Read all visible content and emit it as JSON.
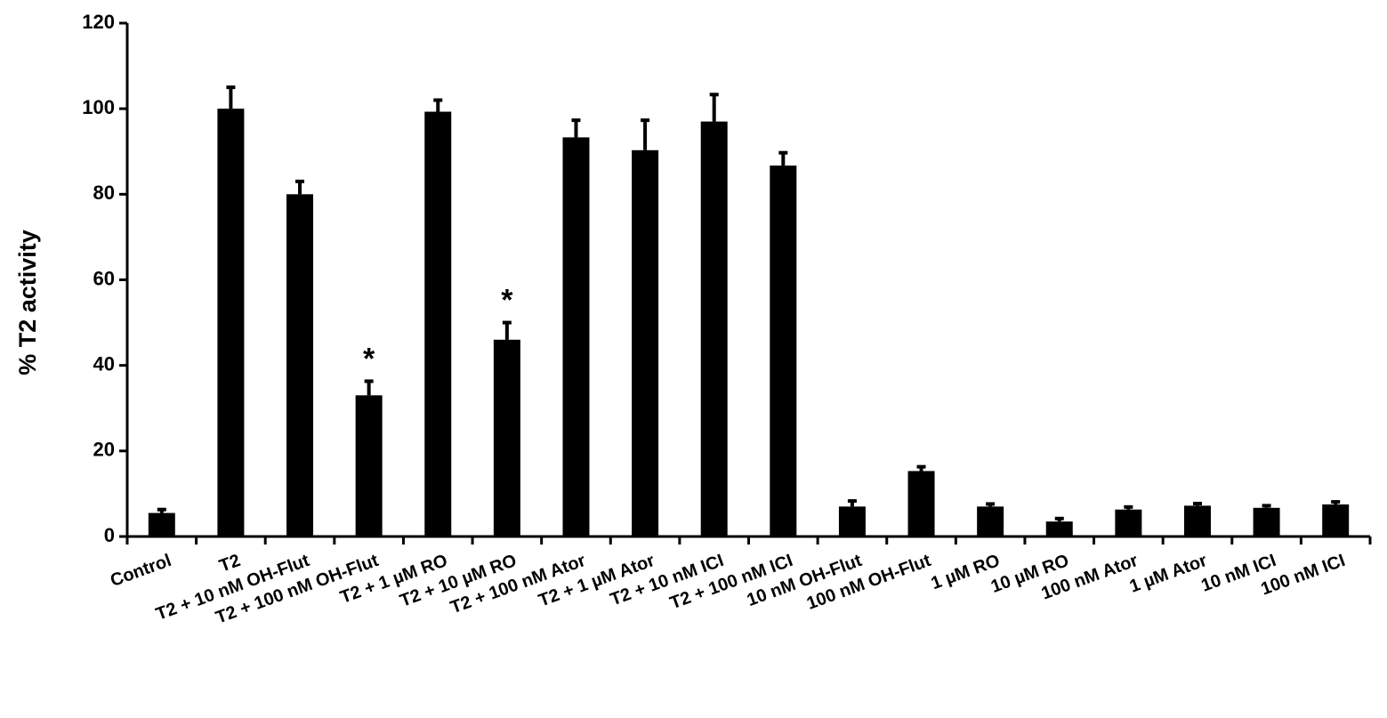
{
  "chart_data": {
    "type": "bar",
    "y_label": "% T2 activity",
    "categories": [
      "Control",
      "T2",
      "T2 + 10 nM OH-Flut",
      "T2 + 100 nM OH-Flut",
      "T2 + 1 µM RO",
      "T2 + 10 µM RO",
      "T2 + 100 nM Ator",
      "T2 + 1 µM Ator",
      "T2 + 10 nM ICI",
      "T2 + 100 nM ICI",
      "10 nM OH-Flut",
      "100 nM OH-Flut",
      "1 µM RO",
      "10 µM RO",
      "100 nM Ator",
      "1 µM Ator",
      "10 nM ICI",
      "100 nM ICI"
    ],
    "values": [
      5.5,
      100,
      80,
      33,
      99.3,
      46,
      93.3,
      90.3,
      97,
      86.7,
      7,
      15.3,
      7,
      3.5,
      6.3,
      7.2,
      6.7,
      7.5
    ],
    "errors": [
      0.8,
      5,
      3,
      3.3,
      2.7,
      4,
      4,
      7,
      6.3,
      3,
      1.3,
      1,
      0.6,
      0.7,
      0.6,
      0.5,
      0.5,
      0.6
    ],
    "color": "#000000",
    "ylim": [
      0,
      120
    ],
    "yticks": [
      0,
      20,
      40,
      60,
      80,
      100,
      120
    ],
    "annotations": [
      {
        "x": "T2 + 100 nM OH-Flut",
        "text": "*"
      },
      {
        "x": "T2 + 10 µM RO",
        "text": "*"
      }
    ]
  }
}
